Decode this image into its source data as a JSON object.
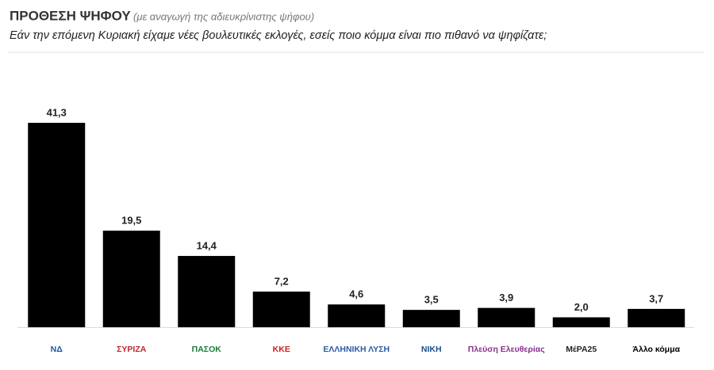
{
  "chart_data": {
    "type": "bar",
    "title": "ΠΡΟΘΕΣΗ ΨΗΦΟΥ",
    "subtitle": "(με αναγωγή της αδιευκρίνιστης ψήφου)",
    "question": "Εάν την επόμενη Κυριακή είχαμε νέες βουλευτικές εκλογές, εσείς ποιο κόμμα είναι πιο πιθανό να ψηφίζατε;",
    "categories": [
      "ΝΔ",
      "ΣΥΡΙΖΑ",
      "ΠΑΣΟΚ",
      "ΚΚΕ",
      "ΕΛΛΗΝΙΚΗ ΛΥΣΗ",
      "ΝΙΚΗ",
      "Πλεύση Ελευθερίας",
      "ΜέΡΑ25",
      "Άλλο κόμμα"
    ],
    "category_colors": [
      "#1a5aa8",
      "#c0262d",
      "#1b7a3a",
      "#d01c1f",
      "#2a5ca8",
      "#1b4f8a",
      "#8b2f8e",
      "#222222",
      "#000000"
    ],
    "values": [
      41.3,
      19.5,
      14.4,
      7.2,
      4.6,
      3.5,
      3.9,
      2.0,
      3.7
    ],
    "value_labels": [
      "41,3",
      "19,5",
      "14,4",
      "7,2",
      "4,6",
      "3,5",
      "3,9",
      "2,0",
      "3,7"
    ],
    "color": "#000000"
  }
}
